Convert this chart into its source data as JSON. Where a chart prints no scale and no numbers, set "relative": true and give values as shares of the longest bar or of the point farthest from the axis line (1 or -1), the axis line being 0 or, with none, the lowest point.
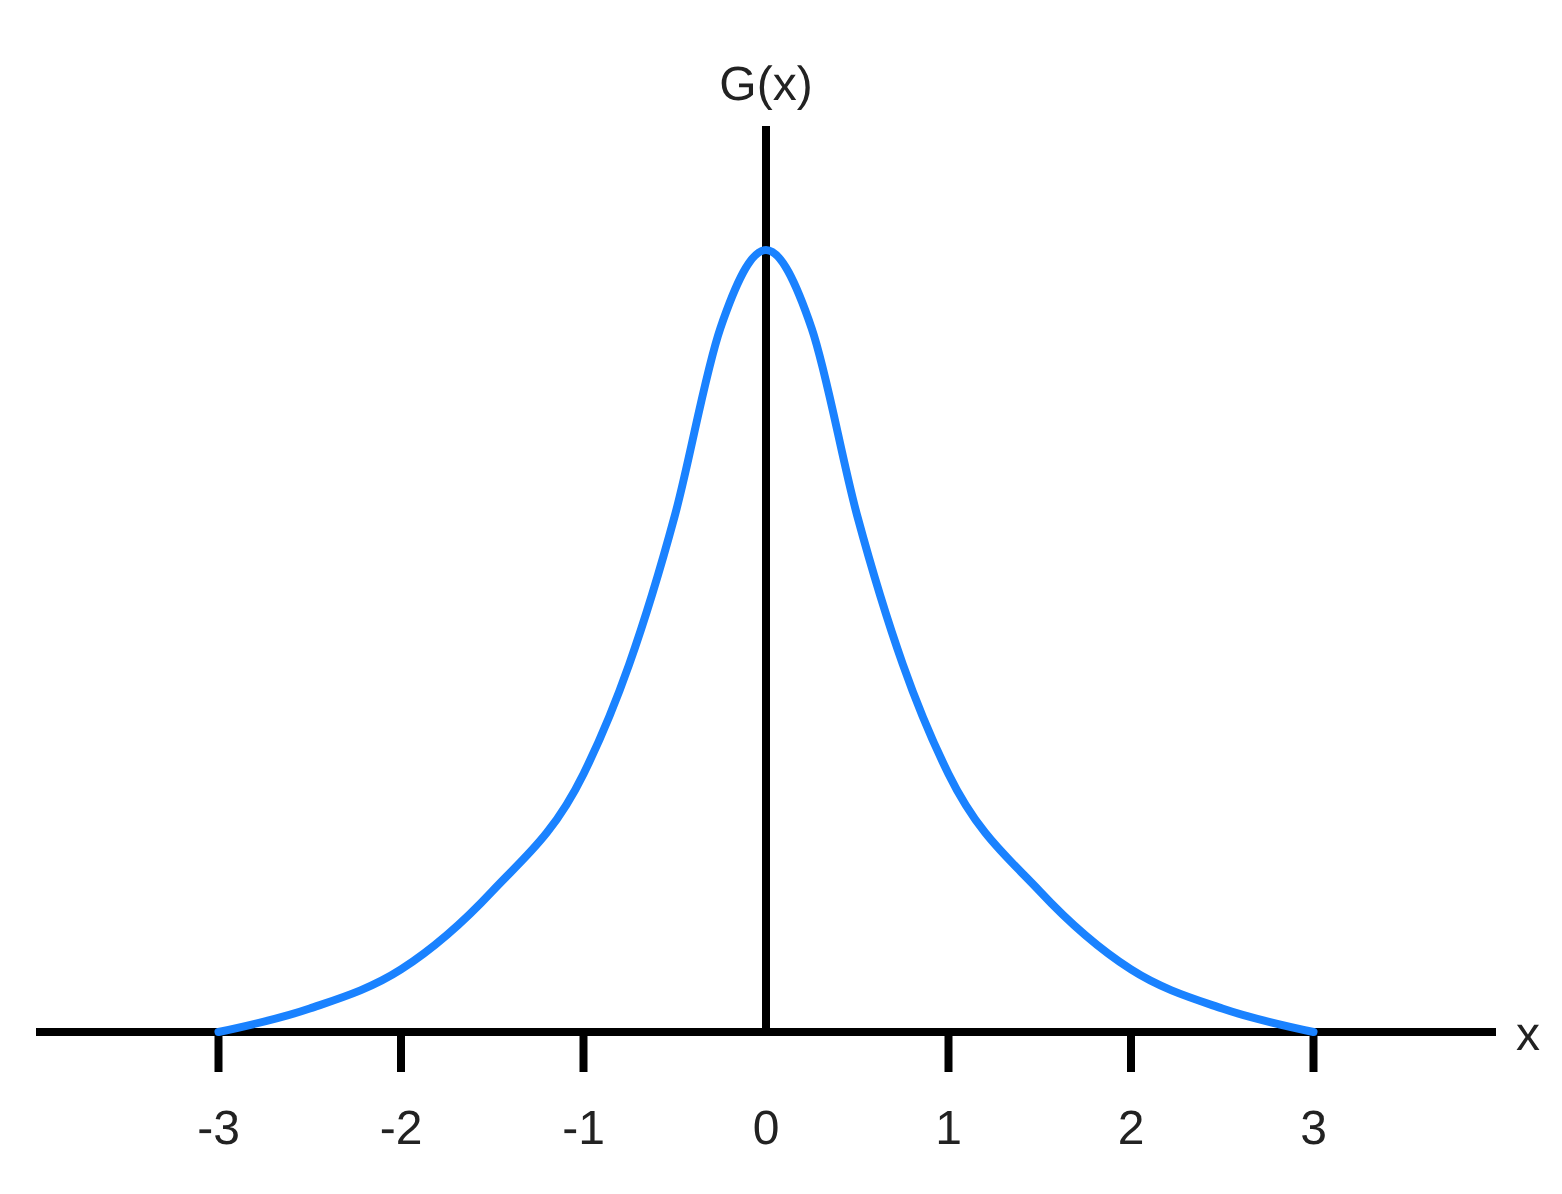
{
  "chart_data": {
    "type": "line",
    "relative": true,
    "xlabel": "x",
    "ylabel": "G(x)",
    "x": [
      -3,
      -2.5,
      -2,
      -1.5,
      -1,
      -0.75,
      -0.5,
      -0.25,
      0,
      0.25,
      0.5,
      0.75,
      1,
      1.5,
      2,
      2.5,
      3
    ],
    "series": [
      {
        "color": "#1a82ff",
        "values": [
          0,
          0.03,
          0.08,
          0.18,
          0.33,
          0.47,
          0.66,
          0.9,
          1,
          0.9,
          0.66,
          0.47,
          0.33,
          0.18,
          0.08,
          0.03,
          0
        ]
      }
    ],
    "xlim": [
      -4,
      4
    ],
    "xticks": [
      -3,
      -2,
      -1,
      0,
      1,
      2,
      3
    ],
    "marker": "none",
    "line_style": "solid"
  }
}
